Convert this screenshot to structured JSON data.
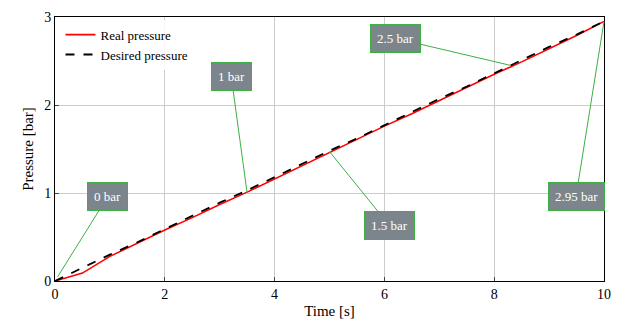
{
  "chart_data": {
    "type": "line",
    "x_label": "Time [s]",
    "y_label": "Pressure [bar]",
    "x": [
      0,
      0.5,
      1,
      1.5,
      2,
      2.5,
      3,
      3.5,
      4,
      4.5,
      5,
      5.5,
      6,
      6.5,
      7,
      7.5,
      8,
      8.5,
      9,
      9.5,
      10
    ],
    "series": [
      {
        "name": "Real pressure",
        "color": "#ff0000",
        "line_style": "solid",
        "values": [
          0,
          0.09,
          0.28,
          0.43,
          0.58,
          0.72,
          0.87,
          1.01,
          1.16,
          1.31,
          1.46,
          1.61,
          1.76,
          1.9,
          2.05,
          2.2,
          2.35,
          2.49,
          2.64,
          2.79,
          2.95
        ]
      },
      {
        "name": "Desired pressure",
        "color": "#000000",
        "line_style": "dashed",
        "values": [
          0,
          0.15,
          0.3,
          0.44,
          0.59,
          0.74,
          0.89,
          1.03,
          1.18,
          1.33,
          1.48,
          1.62,
          1.77,
          1.92,
          2.07,
          2.21,
          2.36,
          2.51,
          2.66,
          2.8,
          2.95
        ]
      }
    ],
    "xlim": [
      0,
      10
    ],
    "ylim": [
      0,
      3
    ],
    "xticks": [
      0,
      2,
      4,
      6,
      8,
      10
    ],
    "yticks": [
      0,
      1,
      2,
      3
    ],
    "grid": true,
    "legend": "upper left",
    "annotations": [
      {
        "text": "0 bar",
        "x": 0.05,
        "y": 0.05
      },
      {
        "text": "1 bar",
        "x": 3.5,
        "y": 1.0
      },
      {
        "text": "2.5 bar",
        "x": 8.3,
        "y": 2.45
      },
      {
        "text": "1.5 bar",
        "x": 5.0,
        "y": 1.47
      },
      {
        "text": "2.95 bar",
        "x": 10,
        "y": 2.95
      }
    ]
  }
}
